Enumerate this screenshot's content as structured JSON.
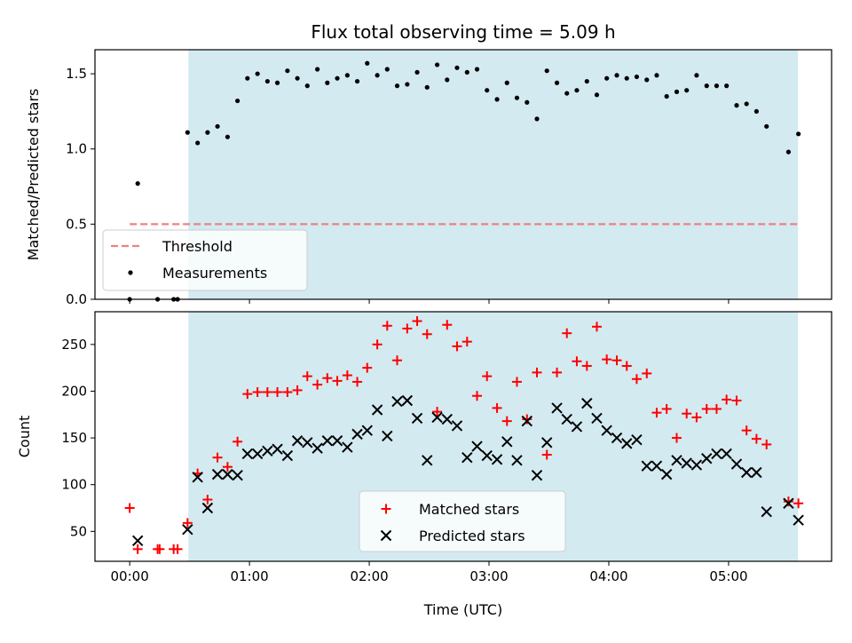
{
  "figure": {
    "title": "Flux total observing time = 5.09 h",
    "shade_color": "#d3eaf1"
  },
  "chart_data": [
    {
      "type": "scatter",
      "title": "Flux total observing time = 5.09 h",
      "xlabel": "",
      "ylabel": "Matched/Predicted stars",
      "xlim": [
        -0.29,
        5.86
      ],
      "ylim": [
        0,
        1.66
      ],
      "xticks": [
        0,
        1,
        2,
        3,
        4,
        5
      ],
      "yticks": [
        0.0,
        0.5,
        1.0,
        1.5
      ],
      "ytick_labels": [
        "0.0",
        "0.5",
        "1.0",
        "1.5"
      ],
      "shaded_x_range": [
        0.49,
        5.58
      ],
      "legend_position": "lower-left",
      "threshold": {
        "name": "Threshold",
        "y": 0.5,
        "x_start": 0.0,
        "x_end": 5.58,
        "color": "#f08080",
        "style": "dashed"
      },
      "series": [
        {
          "name": "Measurements",
          "color": "#000000",
          "marker": "dot",
          "x": [
            0.0,
            0.067,
            0.233,
            0.367,
            0.4,
            0.483,
            0.567,
            0.65,
            0.733,
            0.817,
            0.9,
            0.983,
            1.067,
            1.15,
            1.233,
            1.317,
            1.4,
            1.483,
            1.567,
            1.65,
            1.733,
            1.817,
            1.9,
            1.983,
            2.067,
            2.15,
            2.233,
            2.317,
            2.4,
            2.483,
            2.567,
            2.65,
            2.733,
            2.817,
            2.9,
            2.983,
            3.067,
            3.15,
            3.233,
            3.317,
            3.4,
            3.483,
            3.567,
            3.65,
            3.733,
            3.817,
            3.9,
            3.983,
            4.067,
            4.15,
            4.233,
            4.317,
            4.4,
            4.483,
            4.567,
            4.65,
            4.733,
            4.817,
            4.9,
            4.983,
            5.067,
            5.15,
            5.233,
            5.317,
            5.5,
            5.583
          ],
          "y": [
            0.0,
            0.77,
            0.0,
            0.0,
            0.0,
            1.11,
            1.04,
            1.11,
            1.15,
            1.08,
            1.32,
            1.47,
            1.5,
            1.45,
            1.44,
            1.52,
            1.47,
            1.42,
            1.53,
            1.44,
            1.47,
            1.49,
            1.45,
            1.57,
            1.49,
            1.53,
            1.42,
            1.43,
            1.51,
            1.41,
            1.56,
            1.46,
            1.54,
            1.51,
            1.53,
            1.39,
            1.33,
            1.44,
            1.34,
            1.31,
            1.2,
            1.52,
            1.44,
            1.37,
            1.39,
            1.45,
            1.36,
            1.47,
            1.49,
            1.47,
            1.48,
            1.46,
            1.49,
            1.35,
            1.38,
            1.39,
            1.49,
            1.42,
            1.42,
            1.42,
            1.29,
            1.3,
            1.25,
            1.15,
            0.98,
            1.1
          ]
        }
      ]
    },
    {
      "type": "scatter",
      "title": "",
      "xlabel": "Time (UTC)",
      "ylabel": "Count",
      "xlim": [
        -0.29,
        5.86
      ],
      "ylim": [
        18,
        285
      ],
      "xticks": [
        0,
        1,
        2,
        3,
        4,
        5
      ],
      "xtick_labels": [
        "00:00",
        "01:00",
        "02:00",
        "03:00",
        "04:00",
        "05:00"
      ],
      "yticks": [
        50,
        100,
        150,
        200,
        250
      ],
      "ytick_labels": [
        "50",
        "100",
        "150",
        "200",
        "250"
      ],
      "shaded_x_range": [
        0.49,
        5.58
      ],
      "legend_position": "lower-center",
      "series": [
        {
          "name": "Matched stars",
          "color": "#ff0000",
          "marker": "plus",
          "x": [
            0.0,
            0.067,
            0.233,
            0.25,
            0.367,
            0.4,
            0.483,
            0.567,
            0.65,
            0.733,
            0.817,
            0.9,
            0.983,
            1.067,
            1.15,
            1.233,
            1.317,
            1.4,
            1.483,
            1.567,
            1.65,
            1.733,
            1.817,
            1.9,
            1.983,
            2.067,
            2.15,
            2.233,
            2.317,
            2.4,
            2.483,
            2.567,
            2.65,
            2.733,
            2.817,
            2.9,
            2.983,
            3.067,
            3.15,
            3.233,
            3.317,
            3.4,
            3.483,
            3.567,
            3.65,
            3.733,
            3.817,
            3.9,
            3.983,
            4.067,
            4.15,
            4.233,
            4.317,
            4.4,
            4.483,
            4.567,
            4.65,
            4.733,
            4.817,
            4.9,
            4.983,
            5.067,
            5.15,
            5.233,
            5.317,
            5.5,
            5.583
          ],
          "y": [
            75,
            31,
            31,
            31,
            31,
            31,
            59,
            112,
            84,
            129,
            119,
            146,
            197,
            199,
            199,
            199,
            199,
            201,
            216,
            207,
            214,
            211,
            217,
            210,
            225,
            250,
            270,
            233,
            267,
            275,
            261,
            178,
            271,
            248,
            253,
            195,
            216,
            182,
            168,
            210,
            170,
            220,
            132,
            220,
            262,
            232,
            227,
            269,
            234,
            233,
            227,
            213,
            219,
            177,
            181,
            150,
            176,
            172,
            181,
            181,
            191,
            190,
            158,
            149,
            143,
            82,
            80
          ],
          "y_note": ""
        },
        {
          "name": "Predicted stars",
          "color": "#000000",
          "marker": "x",
          "x": [
            0.067,
            0.483,
            0.567,
            0.65,
            0.733,
            0.817,
            0.9,
            0.983,
            1.067,
            1.15,
            1.233,
            1.317,
            1.4,
            1.483,
            1.567,
            1.65,
            1.733,
            1.817,
            1.9,
            1.983,
            2.067,
            2.15,
            2.233,
            2.317,
            2.4,
            2.483,
            2.567,
            2.65,
            2.733,
            2.817,
            2.9,
            2.983,
            3.067,
            3.15,
            3.233,
            3.317,
            3.4,
            3.483,
            3.567,
            3.65,
            3.733,
            3.817,
            3.9,
            3.983,
            4.067,
            4.15,
            4.233,
            4.317,
            4.4,
            4.483,
            4.567,
            4.65,
            4.733,
            4.817,
            4.9,
            4.983,
            5.067,
            5.15,
            5.233,
            5.317,
            5.5,
            5.583
          ],
          "y": [
            40,
            52,
            108,
            75,
            111,
            111,
            110,
            133,
            133,
            136,
            138,
            131,
            147,
            145,
            139,
            147,
            147,
            140,
            154,
            158,
            180,
            152,
            189,
            190,
            171,
            126,
            172,
            170,
            163,
            129,
            141,
            131,
            127,
            146,
            126,
            168,
            110,
            145,
            182,
            170,
            162,
            187,
            171,
            158,
            150,
            144,
            148,
            120,
            120,
            111,
            126,
            123,
            121,
            128,
            133,
            133,
            122,
            113,
            113,
            71,
            80,
            62
          ]
        }
      ]
    }
  ]
}
